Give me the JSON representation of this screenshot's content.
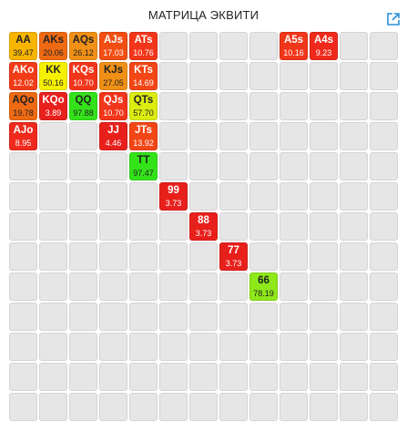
{
  "title": "МАТРИЦА ЭКВИТИ",
  "expand_icon_color": "#2a8fd8",
  "cells": [
    {
      "hand": "AA",
      "equity": "39.47",
      "row": 0,
      "col": 0,
      "bg": "#f7b500",
      "fg": "#222222"
    },
    {
      "hand": "AKs",
      "equity": "20.06",
      "row": 0,
      "col": 1,
      "bg": "#ee6a12",
      "fg": "#222222"
    },
    {
      "hand": "AQs",
      "equity": "26.12",
      "row": 0,
      "col": 2,
      "bg": "#f09016",
      "fg": "#222222"
    },
    {
      "hand": "AJs",
      "equity": "17.03",
      "row": 0,
      "col": 3,
      "bg": "#f24e14",
      "fg": "#ffffff"
    },
    {
      "hand": "ATs",
      "equity": "10.76",
      "row": 0,
      "col": 4,
      "bg": "#f2361a",
      "fg": "#ffffff"
    },
    {
      "hand": "A5s",
      "equity": "10.16",
      "row": 0,
      "col": 9,
      "bg": "#f2361a",
      "fg": "#ffffff"
    },
    {
      "hand": "A4s",
      "equity": "9.23",
      "row": 0,
      "col": 10,
      "bg": "#ef2a1c",
      "fg": "#ffffff"
    },
    {
      "hand": "AKo",
      "equity": "12.02",
      "row": 1,
      "col": 0,
      "bg": "#f23c18",
      "fg": "#ffffff"
    },
    {
      "hand": "KK",
      "equity": "50.16",
      "row": 1,
      "col": 1,
      "bg": "#f5f000",
      "fg": "#222222"
    },
    {
      "hand": "KQs",
      "equity": "10.70",
      "row": 1,
      "col": 2,
      "bg": "#f2361a",
      "fg": "#ffffff"
    },
    {
      "hand": "KJs",
      "equity": "27.05",
      "row": 1,
      "col": 3,
      "bg": "#f09016",
      "fg": "#222222"
    },
    {
      "hand": "KTs",
      "equity": "14.69",
      "row": 1,
      "col": 4,
      "bg": "#f24616",
      "fg": "#ffffff"
    },
    {
      "hand": "AQo",
      "equity": "19.78",
      "row": 2,
      "col": 0,
      "bg": "#ee6a12",
      "fg": "#222222"
    },
    {
      "hand": "KQo",
      "equity": "3.89",
      "row": 2,
      "col": 1,
      "bg": "#e8201c",
      "fg": "#ffffff"
    },
    {
      "hand": "QQ",
      "equity": "97.88",
      "row": 2,
      "col": 2,
      "bg": "#34e21a",
      "fg": "#222222"
    },
    {
      "hand": "QJs",
      "equity": "10.70",
      "row": 2,
      "col": 3,
      "bg": "#f2361a",
      "fg": "#ffffff"
    },
    {
      "hand": "QTs",
      "equity": "57.70",
      "row": 2,
      "col": 4,
      "bg": "#dcec10",
      "fg": "#222222"
    },
    {
      "hand": "AJo",
      "equity": "8.95",
      "row": 3,
      "col": 0,
      "bg": "#ef2a1c",
      "fg": "#ffffff"
    },
    {
      "hand": "JJ",
      "equity": "4.46",
      "row": 3,
      "col": 3,
      "bg": "#e8201c",
      "fg": "#ffffff"
    },
    {
      "hand": "JTs",
      "equity": "13.92",
      "row": 3,
      "col": 4,
      "bg": "#f24616",
      "fg": "#ffffff"
    },
    {
      "hand": "TT",
      "equity": "97.47",
      "row": 4,
      "col": 4,
      "bg": "#34e21a",
      "fg": "#222222"
    },
    {
      "hand": "99",
      "equity": "3.73",
      "row": 5,
      "col": 5,
      "bg": "#e8201c",
      "fg": "#ffffff"
    },
    {
      "hand": "88",
      "equity": "3.73",
      "row": 6,
      "col": 6,
      "bg": "#e8201c",
      "fg": "#ffffff"
    },
    {
      "hand": "77",
      "equity": "3.73",
      "row": 7,
      "col": 7,
      "bg": "#e8201c",
      "fg": "#ffffff"
    },
    {
      "hand": "66",
      "equity": "78.19",
      "row": 8,
      "col": 8,
      "bg": "#8ee81a",
      "fg": "#222222"
    }
  ]
}
